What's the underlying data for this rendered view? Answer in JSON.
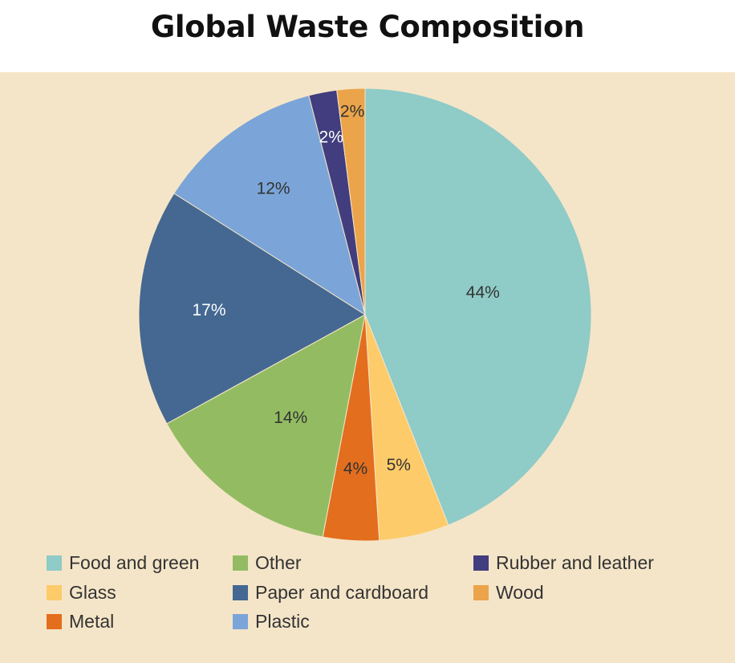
{
  "title": "Global Waste Composition",
  "chart_data": {
    "type": "pie",
    "title": "Global Waste Composition",
    "slices": [
      {
        "name": "Food and green",
        "value": 44,
        "label": "44%",
        "color": "#8fcbc7"
      },
      {
        "name": "Glass",
        "value": 5,
        "label": "5%",
        "color": "#fdcb6a"
      },
      {
        "name": "Metal",
        "value": 4,
        "label": "4%",
        "color": "#e36e1e"
      },
      {
        "name": "Other",
        "value": 14,
        "label": "14%",
        "color": "#93bc62"
      },
      {
        "name": "Paper and cardboard",
        "value": 17,
        "label": "17%",
        "color": "#446891"
      },
      {
        "name": "Plastic",
        "value": 12,
        "label": "12%",
        "color": "#7ba5d8"
      },
      {
        "name": "Rubber and leather",
        "value": 2,
        "label": "2%",
        "color": "#413d7e"
      },
      {
        "name": "Wood",
        "value": 2,
        "label": "2%",
        "color": "#eca44a"
      }
    ],
    "legend": {
      "placement": "bottom",
      "entries": [
        "Food and green",
        "Glass",
        "Metal",
        "Other",
        "Paper and cardboard",
        "Plastic",
        "Rubber and leather",
        "Wood"
      ]
    }
  }
}
